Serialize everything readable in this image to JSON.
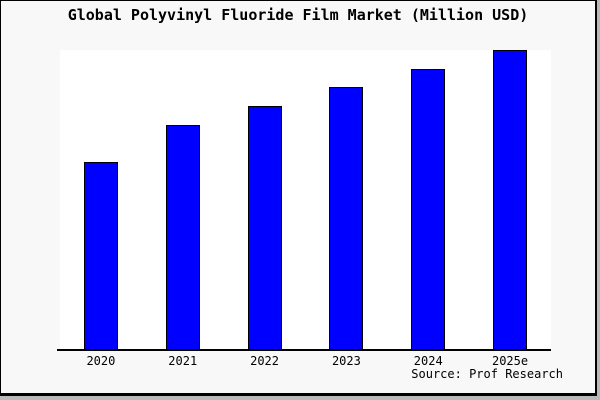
{
  "title": "Global Polyvinyl Fluoride Film Market (Million USD)",
  "source": "Source: Prof Research",
  "colors": {
    "bar_fill": "#0000ff",
    "bar_border": "#000000",
    "plot_background": "#ffffff",
    "panel_background": "#f8f8f8",
    "axis": "#000000",
    "text": "#000000"
  },
  "chart_data": {
    "type": "bar",
    "title": "Global Polyvinyl Fluoride Film Market (Million USD)",
    "categories": [
      "2020",
      "2021",
      "2022",
      "2023",
      "2024",
      "2025e"
    ],
    "values": [
      188,
      225,
      244,
      263,
      281,
      300
    ],
    "xlabel": "",
    "ylabel": "",
    "ylim": [
      0,
      300
    ],
    "value_scale_note": "no y-axis or gridlines shown; values estimated from bar pixel heights (max bar = 300 = full plot height)",
    "grid": false,
    "legend": false,
    "y_axis_visible": false,
    "bar_color": "#0000ff",
    "bar_border_color": "#000000"
  }
}
